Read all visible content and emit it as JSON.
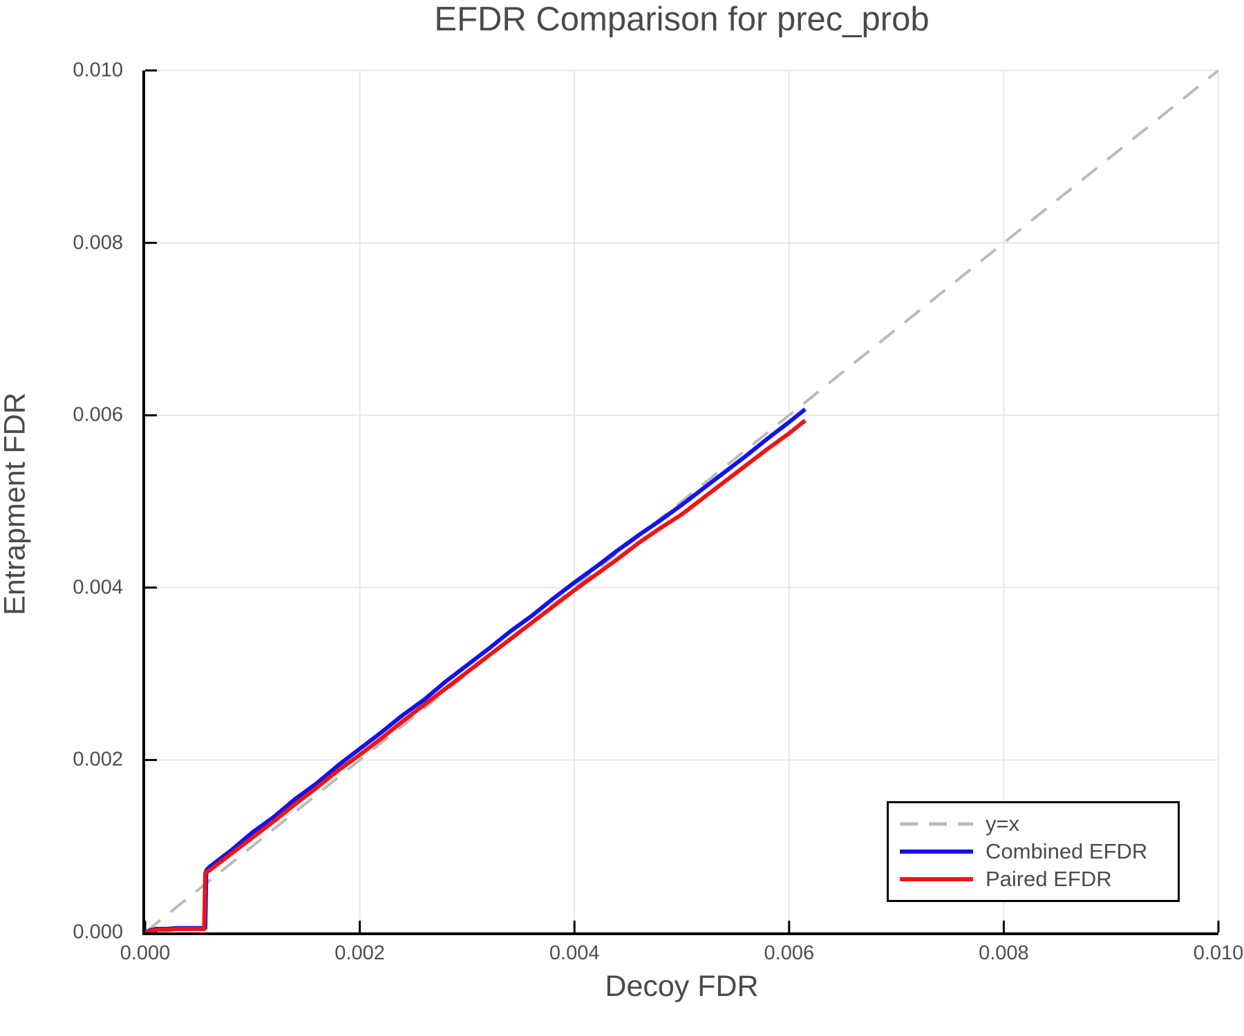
{
  "title": "EFDR Comparison for prec_prob",
  "colors": {
    "background": "#ffffff",
    "spine": "#000000",
    "gridline": "#e6e6e6",
    "text": "#4a4a4a",
    "tick_text": "#4d4d4d",
    "reference_line": "#bababa",
    "combined_line": "#1212ef",
    "paired_line": "#f01414"
  },
  "chart_data": {
    "type": "line",
    "title": "EFDR Comparison for prec_prob",
    "xlabel": "Decoy FDR",
    "ylabel": "Entrapment FDR",
    "xlim": [
      0.0,
      0.01
    ],
    "ylim": [
      0.0,
      0.01
    ],
    "grid": true,
    "xticks": {
      "values": [
        0.0,
        0.002,
        0.004,
        0.006,
        0.008,
        0.01
      ],
      "labels": [
        "0.000",
        "0.002",
        "0.004",
        "0.006",
        "0.008",
        "0.010"
      ]
    },
    "yticks": {
      "values": [
        0.0,
        0.002,
        0.004,
        0.006,
        0.008,
        0.01
      ],
      "labels": [
        "0.000",
        "0.002",
        "0.004",
        "0.006",
        "0.008",
        "0.010"
      ]
    },
    "legend": {
      "position": "lower right",
      "entries": [
        {
          "label": "y=x",
          "color": "#bababa",
          "style": "dashed"
        },
        {
          "label": "Combined EFDR",
          "color": "#1212ef",
          "style": "solid"
        },
        {
          "label": "Paired EFDR",
          "color": "#f01414",
          "style": "solid"
        }
      ]
    },
    "series": [
      {
        "name": "y=x",
        "style": "dashed",
        "color": "#bababa",
        "width": 4,
        "x": [
          0.0,
          0.01
        ],
        "y": [
          0.0,
          0.01
        ]
      },
      {
        "name": "Combined EFDR",
        "style": "solid",
        "color": "#1212ef",
        "width": 6,
        "x": [
          0.0,
          4e-05,
          0.0001,
          0.0002,
          0.0003,
          0.00038,
          0.0005,
          0.00056,
          0.00057,
          0.0006,
          0.0008,
          0.001,
          0.0012,
          0.0014,
          0.0016,
          0.0018,
          0.002,
          0.0022,
          0.0024,
          0.0026,
          0.0028,
          0.003,
          0.0032,
          0.0034,
          0.0036,
          0.0038,
          0.004,
          0.0042,
          0.0044,
          0.0046,
          0.0048,
          0.005,
          0.0052,
          0.0054,
          0.0056,
          0.0058,
          0.006,
          0.00615
        ],
        "y": [
          0.0,
          2e-05,
          4e-05,
          4e-05,
          5e-05,
          5e-05,
          5e-05,
          5e-05,
          0.00072,
          0.00076,
          0.00095,
          0.00116,
          0.00134,
          0.00155,
          0.00173,
          0.00194,
          0.00213,
          0.00232,
          0.00252,
          0.0027,
          0.00291,
          0.0031,
          0.00329,
          0.00349,
          0.00367,
          0.00387,
          0.00406,
          0.00424,
          0.00443,
          0.00461,
          0.00478,
          0.00496,
          0.00515,
          0.00534,
          0.00553,
          0.00573,
          0.00592,
          0.00607
        ]
      },
      {
        "name": "Paired EFDR",
        "style": "solid",
        "color": "#f01414",
        "width": 6,
        "x": [
          0.0,
          4e-05,
          0.0001,
          0.0002,
          0.0003,
          0.00038,
          0.0005,
          0.00055,
          0.00056,
          0.0006,
          0.0008,
          0.001,
          0.0012,
          0.0014,
          0.0016,
          0.0018,
          0.002,
          0.0022,
          0.0024,
          0.0026,
          0.0028,
          0.003,
          0.0032,
          0.0034,
          0.0036,
          0.0038,
          0.004,
          0.0042,
          0.0044,
          0.0046,
          0.0048,
          0.005,
          0.0052,
          0.0054,
          0.0056,
          0.0058,
          0.006,
          0.00615
        ],
        "y": [
          0.0,
          1e-05,
          3e-05,
          3e-05,
          4e-05,
          4e-05,
          4e-05,
          4e-05,
          0.00069,
          0.00072,
          0.00091,
          0.0011,
          0.00129,
          0.00149,
          0.00168,
          0.00188,
          0.00206,
          0.00225,
          0.00245,
          0.00264,
          0.00283,
          0.00302,
          0.00321,
          0.0034,
          0.00359,
          0.00378,
          0.00397,
          0.00415,
          0.00433,
          0.00452,
          0.00469,
          0.00485,
          0.00504,
          0.00523,
          0.00542,
          0.00561,
          0.00579,
          0.00594
        ]
      }
    ]
  }
}
